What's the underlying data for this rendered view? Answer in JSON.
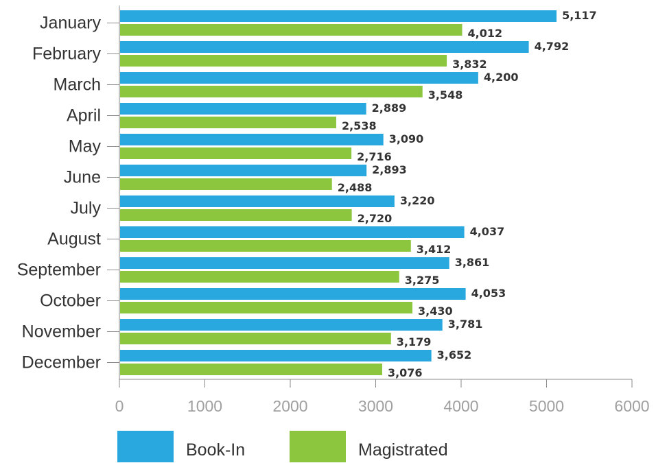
{
  "chart_data": {
    "type": "bar",
    "orientation": "horizontal",
    "categories": [
      "January",
      "February",
      "March",
      "April",
      "May",
      "June",
      "July",
      "August",
      "September",
      "October",
      "November",
      "December"
    ],
    "series": [
      {
        "name": "Book-In",
        "color": "#29a8e0",
        "values": [
          5117,
          4792,
          4200,
          2889,
          3090,
          2893,
          3220,
          4037,
          3861,
          4053,
          3781,
          3652
        ],
        "labels": [
          "5,117",
          "4,792",
          "4,200",
          "2,889",
          "3,090",
          "2,893",
          "3,220",
          "4,037",
          "3,861",
          "4,053",
          "3,781",
          "3,652"
        ]
      },
      {
        "name": "Magistrated",
        "color": "#8cc63f",
        "values": [
          4012,
          3832,
          3548,
          2538,
          2716,
          2488,
          2720,
          3412,
          3275,
          3430,
          3179,
          3076
        ],
        "labels": [
          "4,012",
          "3,832",
          "3,548",
          "2,538",
          "2,716",
          "2,488",
          "2,720",
          "3,412",
          "3,275",
          "3,430",
          "3,179",
          "3,076"
        ]
      }
    ],
    "xlim": [
      0,
      6000
    ],
    "ticks": [
      "0",
      "1000",
      "2000",
      "3000",
      "4000",
      "5000",
      "6000"
    ],
    "grid": false,
    "legend_position": "bottom-left"
  }
}
